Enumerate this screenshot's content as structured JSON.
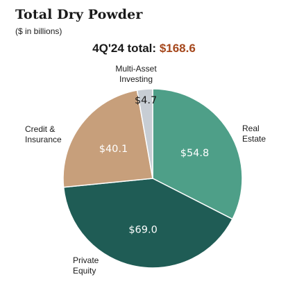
{
  "title": "Total Dry Powder",
  "subtitle": "($ in billions)",
  "total": {
    "label": "4Q'24 total:",
    "value": "$168.6",
    "value_color": "#a5471c"
  },
  "chart_data": {
    "type": "pie",
    "title": "Total Dry Powder",
    "subtitle": "($ in billions)",
    "unit": "$ in billions",
    "total": 168.6,
    "start": "12 o'clock",
    "direction": "clockwise",
    "slices": [
      {
        "category": [
          "Real",
          "Estate"
        ],
        "value": 54.8,
        "value_label": "$54.8",
        "color": "#4e9f88",
        "label_color": "#ffffff"
      },
      {
        "category": [
          "Private",
          "Equity"
        ],
        "value": 69.0,
        "value_label": "$69.0",
        "color": "#1f5c55",
        "label_color": "#ffffff"
      },
      {
        "category": [
          "Credit &",
          "Insurance"
        ],
        "value": 40.1,
        "value_label": "$40.1",
        "color": "#c79f7b",
        "label_color": "#ffffff"
      },
      {
        "category": [
          "Multi-Asset",
          "Investing"
        ],
        "value": 4.7,
        "value_label": "$4.7",
        "color": "#c7cdd4",
        "label_color": "#1a1a1a"
      }
    ]
  }
}
